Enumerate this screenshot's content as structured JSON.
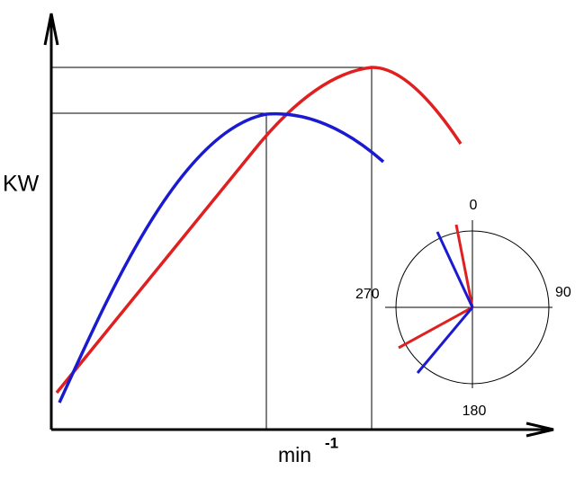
{
  "axis_labels": {
    "y": "KW",
    "x": "min",
    "x_exponent": "-1"
  },
  "polar_labels": {
    "top": "0",
    "right": "90",
    "bottom": "180",
    "left": "270"
  }
}
